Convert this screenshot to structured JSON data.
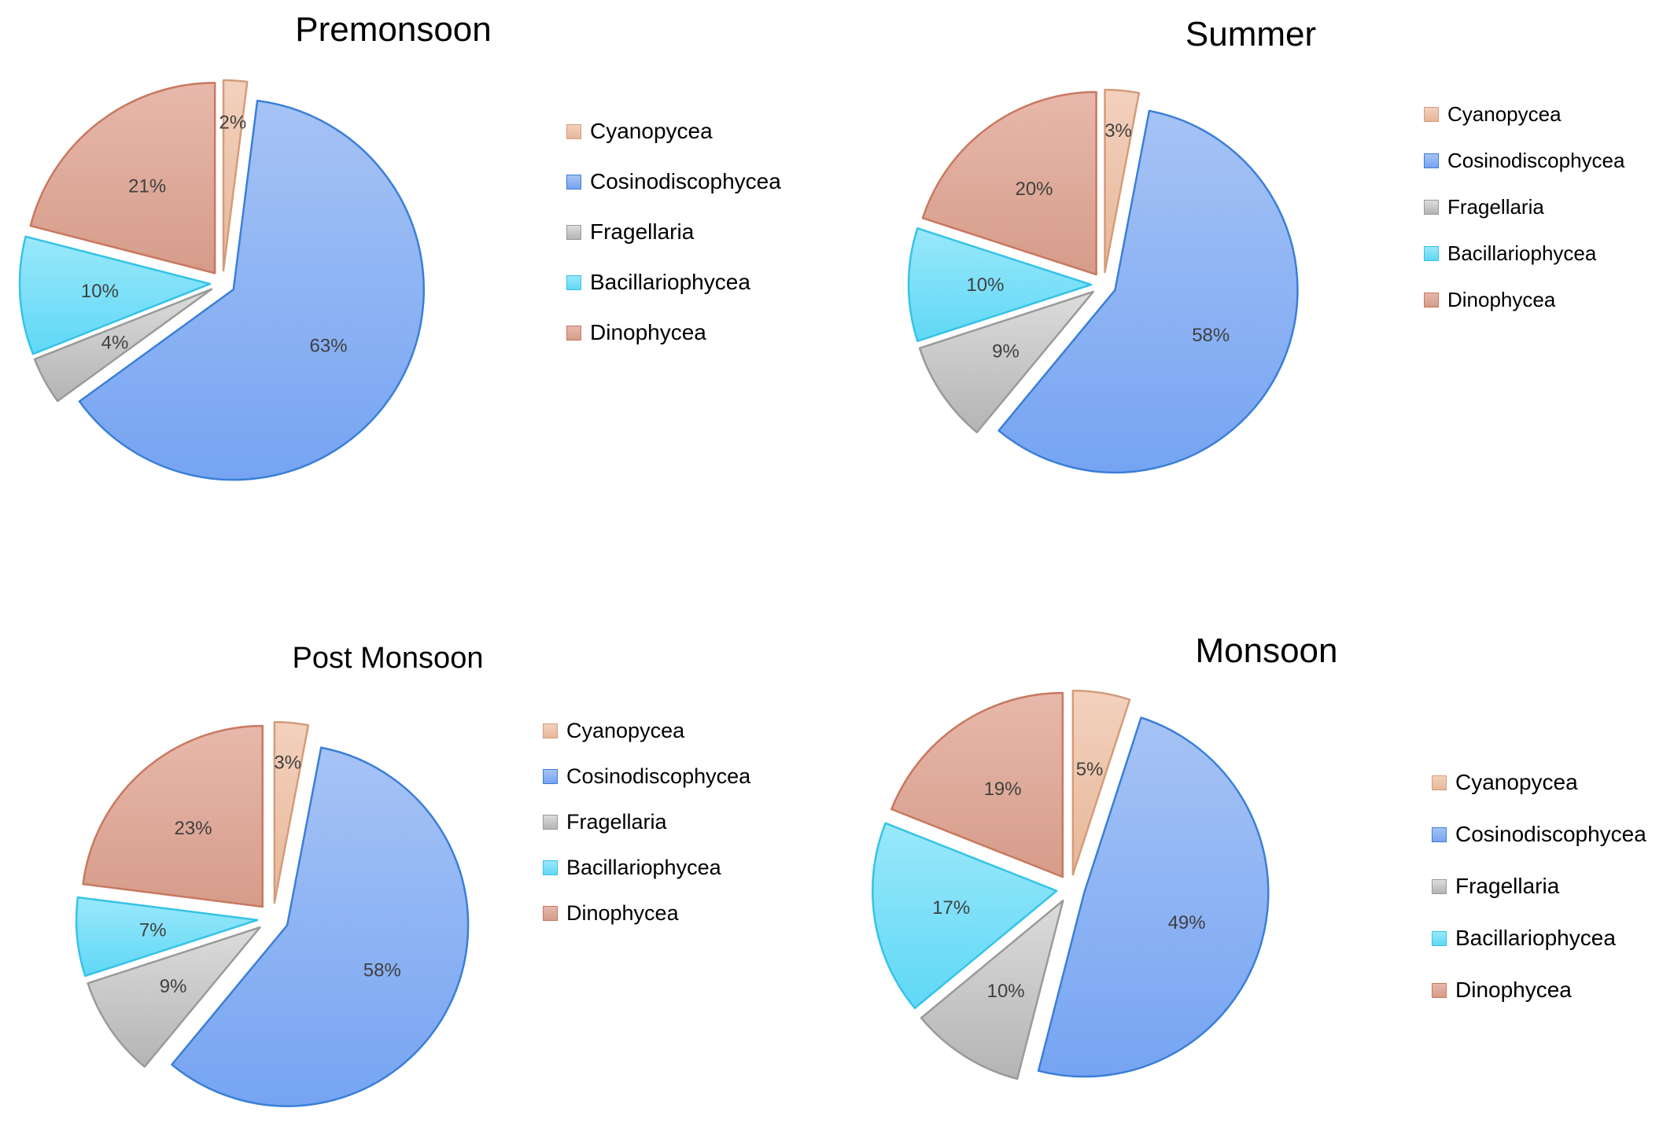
{
  "chart_data": [
    {
      "type": "pie",
      "title": "Premonsoon",
      "categories": [
        "Cyanopycea",
        "Cosinodiscophycea",
        "Fragellaria",
        "Bacillariophycea",
        "Dinophycea"
      ],
      "values": [
        2,
        63,
        4,
        10,
        21
      ],
      "data_labels": [
        "2%",
        "63%",
        "4%",
        "10%",
        "21%"
      ],
      "exploded": true,
      "legend_position": "right"
    },
    {
      "type": "pie",
      "title": "Summer",
      "categories": [
        "Cyanopycea",
        "Cosinodiscophycea",
        "Fragellaria",
        "Bacillariophycea",
        "Dinophycea"
      ],
      "values": [
        3,
        58,
        9,
        10,
        20
      ],
      "data_labels": [
        "3%",
        "58%",
        "9%",
        "10%",
        "20%"
      ],
      "exploded": true,
      "legend_position": "right"
    },
    {
      "type": "pie",
      "title": "Post Monsoon",
      "categories": [
        "Cyanopycea",
        "Cosinodiscophycea",
        "Fragellaria",
        "Bacillariophycea",
        "Dinophycea"
      ],
      "values": [
        3,
        58,
        9,
        7,
        23
      ],
      "data_labels": [
        "3%",
        "58%",
        "9%",
        "7%",
        "23%"
      ],
      "exploded": true,
      "legend_position": "right"
    },
    {
      "type": "pie",
      "title": "Monsoon",
      "categories": [
        "Cyanopycea",
        "Cosinodiscophycea",
        "Fragellaria",
        "Bacillariophycea",
        "Dinophycea"
      ],
      "values": [
        5,
        49,
        10,
        17,
        19
      ],
      "data_labels": [
        "5%",
        "49%",
        "10%",
        "17%",
        "19%"
      ],
      "exploded": true,
      "legend_position": "right"
    }
  ],
  "colors": {
    "Cyanopycea": {
      "fill_light": "#f3d1be",
      "fill_dark": "#e7b798",
      "stroke": "#d49c7a"
    },
    "Cosinodiscophycea": {
      "fill_light": "#a6c3f5",
      "fill_dark": "#76a4f2",
      "stroke": "#3a7fd8"
    },
    "Fragellaria": {
      "fill_light": "#dcdcdc",
      "fill_dark": "#b4b4b4",
      "stroke": "#9a9a9a"
    },
    "Bacillariophycea": {
      "fill_light": "#9ae8fa",
      "fill_dark": "#5fd8f6",
      "stroke": "#35c3e8"
    },
    "Dinophycea": {
      "fill_light": "#e7b8ab",
      "fill_dark": "#d69c8a",
      "stroke": "#c9785f"
    }
  }
}
